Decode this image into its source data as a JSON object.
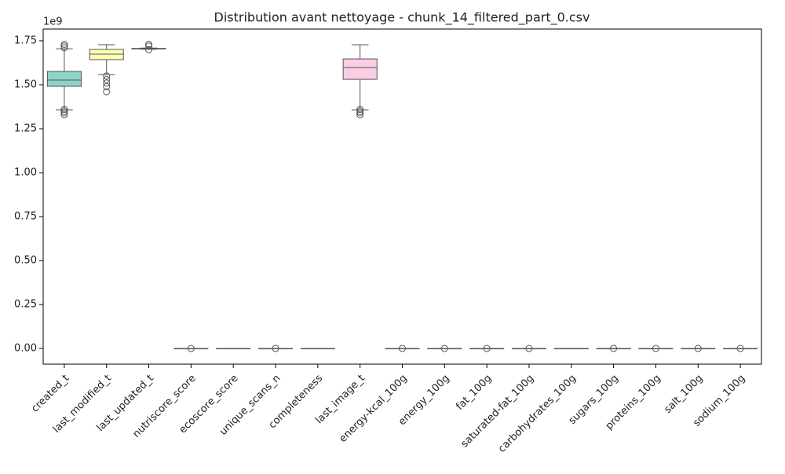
{
  "chart_data": {
    "type": "box",
    "title": "Distribution avant nettoyage - chunk_14_filtered_part_0.csv",
    "y_offset_label": "1e9",
    "categories": [
      "created_t",
      "last_modified_t",
      "last_updated_t",
      "nutriscore_score",
      "ecoscore_score",
      "unique_scans_n",
      "completeness",
      "last_image_t",
      "energy-kcal_100g",
      "energy_100g",
      "fat_100g",
      "saturated-fat_100g",
      "carbohydrates_100g",
      "sugars_100g",
      "proteins_100g",
      "salt_100g",
      "sodium_100g"
    ],
    "colors": [
      "#8dd3c7",
      "#ffffb3",
      "#bebada",
      "#fb8072",
      "#80b1d3",
      "#fdb462",
      "#b3de69",
      "#fccde5",
      "#d9d9d9",
      "#bc80bd",
      "#ccebc5",
      "#ffed6f",
      "#8dd3c7",
      "#ffffb3",
      "#bebada",
      "#fb8072",
      "#80b1d3"
    ],
    "boxes": [
      {
        "whislo": 1.357,
        "q1": 1.491,
        "med": 1.527,
        "q3": 1.576,
        "whishi": 1.705,
        "fliers": [
          1.71,
          1.72,
          1.73,
          1.36,
          1.35,
          1.34,
          1.33
        ]
      },
      {
        "whislo": 1.558,
        "q1": 1.643,
        "med": 1.674,
        "q3": 1.701,
        "whishi": 1.728,
        "fliers": [
          1.55,
          1.53,
          1.51,
          1.49,
          1.46
        ]
      },
      {
        "whislo": 1.702,
        "q1": 1.704,
        "med": 1.705,
        "q3": 1.707,
        "whishi": 1.709,
        "fliers": [
          1.72,
          1.73,
          1.7
        ]
      },
      {
        "whislo": 0,
        "q1": 0,
        "med": 0,
        "q3": 0,
        "whishi": 0,
        "fliers": [
          0
        ]
      },
      {
        "whislo": 0,
        "q1": 0,
        "med": 0,
        "q3": 0,
        "whishi": 0,
        "fliers": []
      },
      {
        "whislo": 0,
        "q1": 0,
        "med": 0,
        "q3": 0,
        "whishi": 0,
        "fliers": [
          0
        ]
      },
      {
        "whislo": 0,
        "q1": 0,
        "med": 0,
        "q3": 0,
        "whishi": 0,
        "fliers": []
      },
      {
        "whislo": 1.357,
        "q1": 1.531,
        "med": 1.598,
        "q3": 1.647,
        "whishi": 1.728,
        "fliers": [
          1.36,
          1.35,
          1.34,
          1.33
        ]
      },
      {
        "whislo": 0,
        "q1": 0,
        "med": 0,
        "q3": 0,
        "whishi": 0,
        "fliers": [
          0
        ]
      },
      {
        "whislo": 0,
        "q1": 0,
        "med": 0,
        "q3": 0,
        "whishi": 0,
        "fliers": [
          0
        ]
      },
      {
        "whislo": 0,
        "q1": 0,
        "med": 0,
        "q3": 0,
        "whishi": 0,
        "fliers": [
          0
        ]
      },
      {
        "whislo": 0,
        "q1": 0,
        "med": 0,
        "q3": 0,
        "whishi": 0,
        "fliers": [
          0
        ]
      },
      {
        "whislo": 0,
        "q1": 0,
        "med": 0,
        "q3": 0,
        "whishi": 0,
        "fliers": []
      },
      {
        "whislo": 0,
        "q1": 0,
        "med": 0,
        "q3": 0,
        "whishi": 0,
        "fliers": [
          0
        ]
      },
      {
        "whislo": 0,
        "q1": 0,
        "med": 0,
        "q3": 0,
        "whishi": 0,
        "fliers": [
          0
        ]
      },
      {
        "whislo": 0,
        "q1": 0,
        "med": 0,
        "q3": 0,
        "whishi": 0,
        "fliers": [
          0
        ]
      },
      {
        "whislo": 0,
        "q1": 0,
        "med": 0,
        "q3": 0,
        "whishi": 0,
        "fliers": [
          0
        ]
      }
    ],
    "ylim": [
      -0.089,
      1.817
    ],
    "yticks": [
      {
        "value": 0,
        "label": "0.00"
      },
      0.25,
      {
        "value": 0.5,
        "label": "0.50"
      },
      0.75,
      {
        "value": 1,
        "label": "1.00"
      },
      1.25,
      {
        "value": 1.5,
        "label": "1.50"
      },
      1.75
    ]
  }
}
